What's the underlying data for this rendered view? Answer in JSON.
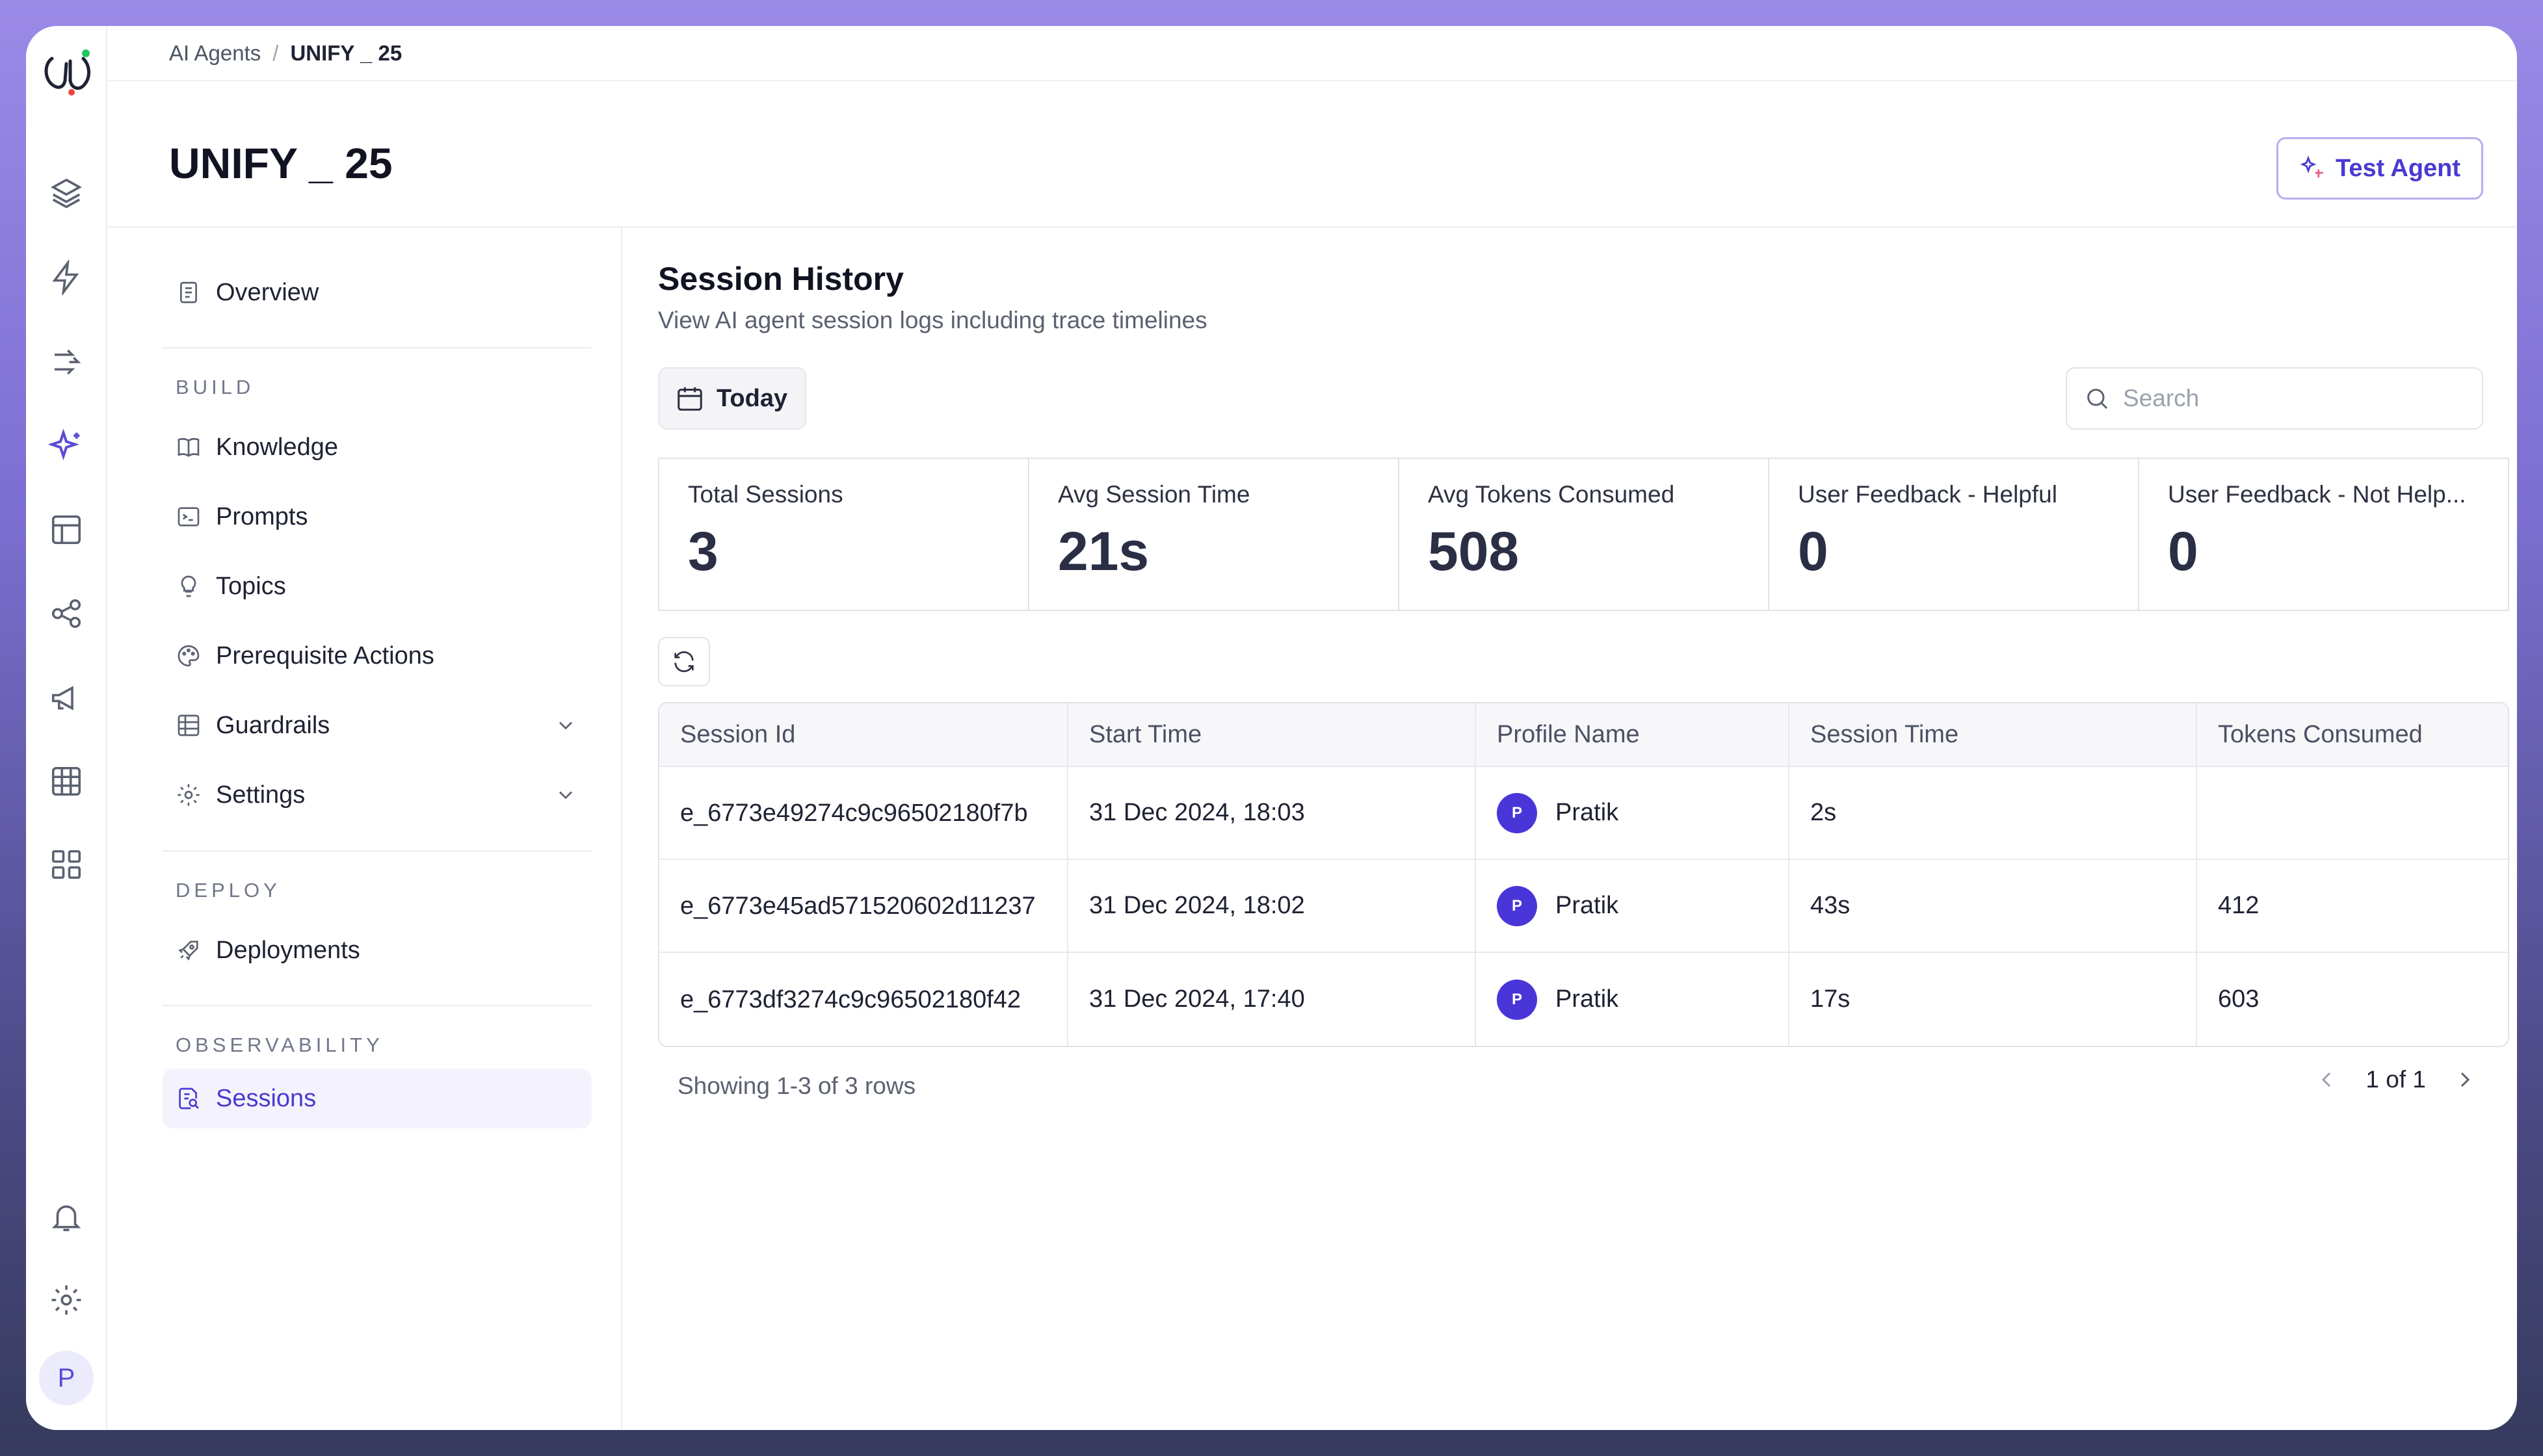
{
  "breadcrumb": {
    "parent": "AI Agents",
    "separator": "/",
    "current": "UNIFY _ 25"
  },
  "page": {
    "title": "UNIFY _ 25",
    "test_agent_label": "Test Agent"
  },
  "nav": {
    "overview": "Overview",
    "build_section": "BUILD",
    "knowledge": "Knowledge",
    "prompts": "Prompts",
    "topics": "Topics",
    "prerequisite_actions": "Prerequisite Actions",
    "guardrails": "Guardrails",
    "settings": "Settings",
    "deploy_section": "DEPLOY",
    "deployments": "Deployments",
    "observability_section": "OBSERVABILITY",
    "sessions": "Sessions"
  },
  "rail": {
    "avatar_initial": "P"
  },
  "session_history": {
    "title": "Session History",
    "subtitle": "View AI agent session logs including trace timelines",
    "date_filter": "Today",
    "search_placeholder": "Search"
  },
  "stats": [
    {
      "label": "Total Sessions",
      "value": "3"
    },
    {
      "label": "Avg Session Time",
      "value": "21s"
    },
    {
      "label": "Avg Tokens Consumed",
      "value": "508"
    },
    {
      "label": "User Feedback - Helpful",
      "value": "0"
    },
    {
      "label": "User Feedback - Not Help...",
      "value": "0"
    }
  ],
  "table": {
    "headers": [
      "Session Id",
      "Start Time",
      "Profile Name",
      "Session Time",
      "Tokens Consumed"
    ],
    "rows": [
      {
        "id": "e_6773e49274c9c96502180f7b",
        "start": "31 Dec 2024, 18:03",
        "initial": "P",
        "profile": "Pratik",
        "time": "2s",
        "tokens": ""
      },
      {
        "id": "e_6773e45ad571520602d11237",
        "start": "31 Dec 2024, 18:02",
        "initial": "P",
        "profile": "Pratik",
        "time": "43s",
        "tokens": "412"
      },
      {
        "id": "e_6773df3274c9c96502180f42",
        "start": "31 Dec 2024, 17:40",
        "initial": "P",
        "profile": "Pratik",
        "time": "17s",
        "tokens": "603"
      }
    ]
  },
  "footer": {
    "showing": "Showing 1-3 of 3 rows",
    "page": "1 of 1"
  },
  "colors": {
    "accent": "#4a3ad1",
    "avatar_bg": "#4a35d9",
    "frame_gradient_top": "#9b8ae8"
  }
}
